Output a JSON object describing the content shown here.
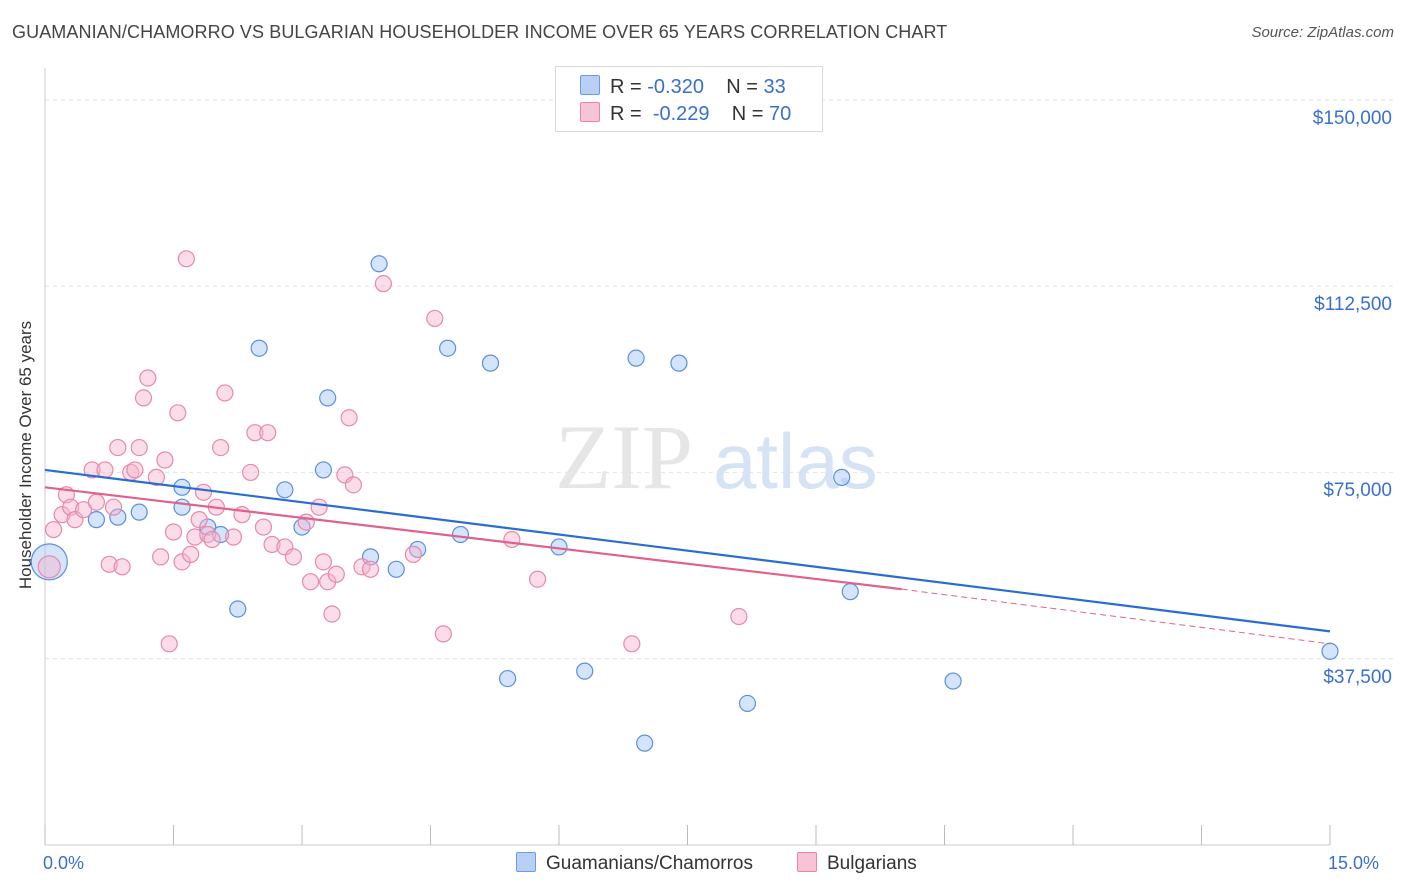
{
  "title": "GUAMANIAN/CHAMORRO VS BULGARIAN HOUSEHOLDER INCOME OVER 65 YEARS CORRELATION CHART",
  "source": "Source: ZipAtlas.com",
  "watermark": {
    "zip": "ZIP",
    "atlas": "atlas"
  },
  "legend": {
    "rows": [
      {
        "r_label": "R =",
        "r_value": "-0.320",
        "n_label": "N =",
        "n_value": "33",
        "color": "#6b9be6",
        "fill": "#b8d0f5"
      },
      {
        "r_label": "R =",
        "r_value": "-0.229",
        "n_label": "N =",
        "n_value": "70",
        "color": "#e886a8",
        "fill": "#f8c3d5"
      }
    ]
  },
  "bottom_legend": [
    {
      "label": "Guamanians/Chamorros",
      "color": "#6b9be6",
      "fill": "#b8d0f5"
    },
    {
      "label": "Bulgarians",
      "color": "#e886a8",
      "fill": "#f8c3d5"
    }
  ],
  "chart_data": {
    "type": "scatter",
    "title": "GUAMANIAN/CHAMORRO VS BULGARIAN HOUSEHOLDER INCOME OVER 65 YEARS CORRELATION CHART",
    "xlabel": "",
    "ylabel": "Householder Income Over 65 years",
    "x_tick_labels": [
      "0.0%",
      "15.0%"
    ],
    "y_tick_labels": [
      "$37,500",
      "$75,000",
      "$112,500",
      "$150,000"
    ],
    "y_ticks": [
      37500,
      75000,
      112500,
      150000
    ],
    "xlim": [
      0,
      15
    ],
    "ylim": [
      0,
      155000
    ],
    "grid": true,
    "legend_position": "top-center",
    "series": [
      {
        "name": "Guamanians/Chamorros",
        "color": "#5b8fe0",
        "line_color": "#2a6dd0",
        "points": [
          [
            0.05,
            57000,
            18
          ],
          [
            0.6,
            65500,
            8
          ],
          [
            1.1,
            67000,
            8
          ],
          [
            0.85,
            66000,
            8
          ],
          [
            1.6,
            72000,
            8
          ],
          [
            1.6,
            68000,
            8
          ],
          [
            1.9,
            64000,
            8
          ],
          [
            2.05,
            62500,
            8
          ],
          [
            2.25,
            47500,
            8
          ],
          [
            2.5,
            100000,
            8
          ],
          [
            2.8,
            71500,
            8
          ],
          [
            3.0,
            64000,
            8
          ],
          [
            3.3,
            90000,
            8
          ],
          [
            3.25,
            75500,
            8
          ],
          [
            3.8,
            58000,
            8
          ],
          [
            3.9,
            117000,
            8
          ],
          [
            4.1,
            55500,
            8
          ],
          [
            4.35,
            59500,
            8
          ],
          [
            4.7,
            100000,
            8
          ],
          [
            4.85,
            62500,
            8
          ],
          [
            5.2,
            97000,
            8
          ],
          [
            5.4,
            33500,
            8
          ],
          [
            6.0,
            60000,
            8
          ],
          [
            6.3,
            35000,
            8
          ],
          [
            6.9,
            98000,
            8
          ],
          [
            7.0,
            20500,
            8
          ],
          [
            7.4,
            97000,
            8
          ],
          [
            8.2,
            28500,
            8
          ],
          [
            9.3,
            74000,
            8
          ],
          [
            9.4,
            51000,
            8
          ],
          [
            10.6,
            33000,
            8
          ],
          [
            15.0,
            39000,
            8
          ]
        ],
        "trend": {
          "x": [
            0.0,
            15.0
          ],
          "y": [
            75500,
            43000
          ],
          "dashed_to": null
        }
      },
      {
        "name": "Bulgarians",
        "color": "#e888aa",
        "line_color": "#e0608e",
        "points": [
          [
            0.05,
            56000,
            11
          ],
          [
            0.1,
            63500,
            8
          ],
          [
            0.2,
            66500,
            8
          ],
          [
            0.25,
            70500,
            8
          ],
          [
            0.3,
            68000,
            8
          ],
          [
            0.35,
            65500,
            8
          ],
          [
            0.45,
            67500,
            8
          ],
          [
            0.55,
            75500,
            8
          ],
          [
            0.6,
            69000,
            8
          ],
          [
            0.7,
            75500,
            8
          ],
          [
            0.75,
            56500,
            8
          ],
          [
            0.8,
            68000,
            8
          ],
          [
            0.85,
            80000,
            8
          ],
          [
            0.9,
            56000,
            8
          ],
          [
            1.0,
            75000,
            8
          ],
          [
            1.05,
            75500,
            8
          ],
          [
            1.1,
            80000,
            8
          ],
          [
            1.15,
            90000,
            8
          ],
          [
            1.2,
            94000,
            8
          ],
          [
            1.3,
            74000,
            8
          ],
          [
            1.35,
            58000,
            8
          ],
          [
            1.4,
            77500,
            8
          ],
          [
            1.45,
            40500,
            8
          ],
          [
            1.5,
            63000,
            8
          ],
          [
            1.55,
            87000,
            8
          ],
          [
            1.6,
            57000,
            8
          ],
          [
            1.7,
            58500,
            8
          ],
          [
            1.65,
            118000,
            8
          ],
          [
            1.75,
            62000,
            8
          ],
          [
            1.8,
            65500,
            8
          ],
          [
            1.85,
            71000,
            8
          ],
          [
            1.9,
            62500,
            8
          ],
          [
            1.95,
            61500,
            8
          ],
          [
            2.0,
            68000,
            8
          ],
          [
            2.05,
            80000,
            8
          ],
          [
            2.1,
            91000,
            8
          ],
          [
            2.2,
            62000,
            8
          ],
          [
            2.3,
            66500,
            8
          ],
          [
            2.4,
            75000,
            8
          ],
          [
            2.45,
            83000,
            8
          ],
          [
            2.55,
            64000,
            8
          ],
          [
            2.6,
            83000,
            8
          ],
          [
            2.65,
            60500,
            8
          ],
          [
            2.8,
            60000,
            8
          ],
          [
            2.9,
            58000,
            8
          ],
          [
            3.05,
            65000,
            8
          ],
          [
            3.1,
            53000,
            8
          ],
          [
            3.2,
            68000,
            8
          ],
          [
            3.25,
            57000,
            8
          ],
          [
            3.3,
            53000,
            8
          ],
          [
            3.35,
            46500,
            8
          ],
          [
            3.4,
            54500,
            8
          ],
          [
            3.5,
            74500,
            8
          ],
          [
            3.55,
            86000,
            8
          ],
          [
            3.6,
            72500,
            8
          ],
          [
            3.7,
            56000,
            8
          ],
          [
            3.8,
            55500,
            8
          ],
          [
            3.95,
            113000,
            8
          ],
          [
            4.3,
            58500,
            8
          ],
          [
            4.55,
            106000,
            8
          ],
          [
            4.65,
            42500,
            8
          ],
          [
            5.45,
            61500,
            8
          ],
          [
            5.75,
            53500,
            8
          ],
          [
            6.85,
            40500,
            8
          ],
          [
            8.1,
            46000,
            8
          ]
        ],
        "trend": {
          "x": [
            0.0,
            10.0
          ],
          "y": [
            72000,
            51500
          ],
          "dashed_to": [
            15.0,
            40500
          ]
        }
      }
    ]
  }
}
